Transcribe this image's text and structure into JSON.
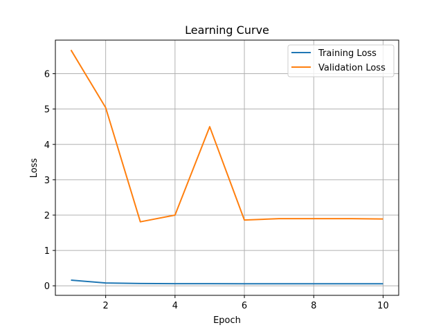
{
  "chart_data": {
    "type": "line",
    "title": "Learning Curve",
    "xlabel": "Epoch",
    "ylabel": "Loss",
    "x": [
      1,
      2,
      3,
      4,
      5,
      6,
      7,
      8,
      9,
      10
    ],
    "series": [
      {
        "name": "Training Loss",
        "color": "#1f77b4",
        "values": [
          0.16,
          0.08,
          0.065,
          0.06,
          0.06,
          0.058,
          0.058,
          0.058,
          0.058,
          0.058
        ]
      },
      {
        "name": "Validation Loss",
        "color": "#ff7f0e",
        "values": [
          6.67,
          5.04,
          1.81,
          2.0,
          4.5,
          1.86,
          1.9,
          1.9,
          1.9,
          1.89
        ]
      }
    ],
    "xlim": [
      0.55,
      10.45
    ],
    "ylim": [
      -0.27,
      6.95
    ],
    "xticks": [
      2,
      4,
      6,
      8,
      10
    ],
    "yticks": [
      0,
      1,
      2,
      3,
      4,
      5,
      6
    ],
    "grid": true,
    "legend_position": "top-right"
  }
}
